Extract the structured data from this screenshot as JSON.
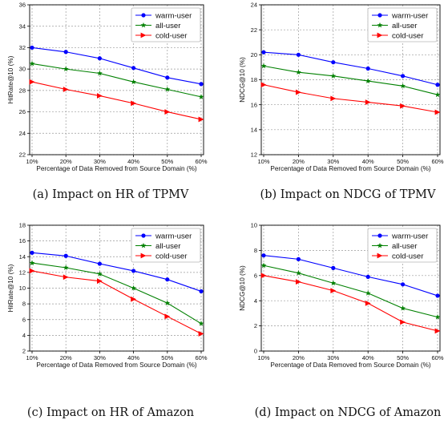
{
  "chart_data": [
    {
      "type": "line",
      "caption": "(a)  Impact on HR of TPMV",
      "xlabel": "Percentage of Data Removed from Source Domain (%)",
      "ylabel": "HitRate@10 (%)",
      "categories": [
        "10%",
        "20%",
        "30%",
        "40%",
        "50%",
        "60%"
      ],
      "ylim": [
        22,
        36
      ],
      "yticks": [
        22,
        24,
        26,
        28,
        30,
        32,
        34,
        36
      ],
      "grid": true,
      "legend": "top-right",
      "series": [
        {
          "name": "warm-user",
          "color": "#0000ff",
          "marker": "circle",
          "values": [
            32.0,
            31.6,
            31.0,
            30.1,
            29.2,
            28.6
          ]
        },
        {
          "name": "all-user",
          "color": "#008000",
          "marker": "star",
          "values": [
            30.5,
            30.0,
            29.6,
            28.8,
            28.1,
            27.4
          ]
        },
        {
          "name": "cold-user",
          "color": "#ff0000",
          "marker": "triangle-right",
          "values": [
            28.8,
            28.1,
            27.5,
            26.8,
            26.0,
            25.3
          ]
        }
      ]
    },
    {
      "type": "line",
      "caption": "(b)  Impact on NDCG of TPMV",
      "xlabel": "Percentage of Data Removed from Source Domain (%)",
      "ylabel": "NDCG@10 (%)",
      "categories": [
        "10%",
        "20%",
        "30%",
        "40%",
        "50%",
        "60%"
      ],
      "ylim": [
        12,
        24
      ],
      "yticks": [
        12,
        14,
        16,
        18,
        20,
        22,
        24
      ],
      "grid": true,
      "legend": "top-right",
      "series": [
        {
          "name": "warm-user",
          "color": "#0000ff",
          "marker": "circle",
          "values": [
            20.2,
            20.0,
            19.4,
            18.9,
            18.3,
            17.6
          ]
        },
        {
          "name": "all-user",
          "color": "#008000",
          "marker": "star",
          "values": [
            19.1,
            18.6,
            18.3,
            17.9,
            17.5,
            16.8
          ]
        },
        {
          "name": "cold-user",
          "color": "#ff0000",
          "marker": "triangle-right",
          "values": [
            17.6,
            17.0,
            16.5,
            16.2,
            15.9,
            15.4
          ]
        }
      ]
    },
    {
      "type": "line",
      "caption": "(c)  Impact on HR of Amazon",
      "xlabel": "Percentage of Data Removed from Source Domain (%)",
      "ylabel": "HitRate@10 (%)",
      "categories": [
        "10%",
        "20%",
        "30%",
        "40%",
        "50%",
        "60%"
      ],
      "ylim": [
        2,
        18
      ],
      "yticks": [
        2,
        4,
        6,
        8,
        10,
        12,
        14,
        16,
        18
      ],
      "grid": true,
      "legend": "top-right",
      "series": [
        {
          "name": "warm-user",
          "color": "#0000ff",
          "marker": "circle",
          "values": [
            14.5,
            14.1,
            13.1,
            12.2,
            11.1,
            9.6
          ]
        },
        {
          "name": "all-user",
          "color": "#008000",
          "marker": "star",
          "values": [
            13.2,
            12.6,
            11.8,
            10.0,
            8.1,
            5.5
          ]
        },
        {
          "name": "cold-user",
          "color": "#ff0000",
          "marker": "triangle-right",
          "values": [
            12.2,
            11.4,
            10.9,
            8.6,
            6.4,
            4.2
          ]
        }
      ]
    },
    {
      "type": "line",
      "caption": "(d)  Impact on NDCG of Amazon",
      "xlabel": "Percentage of Data Removed from Source Domain (%)",
      "ylabel": "NDCG@10 (%)",
      "categories": [
        "10%",
        "20%",
        "30%",
        "40%",
        "50%",
        "60%"
      ],
      "ylim": [
        0,
        10
      ],
      "yticks": [
        0,
        2,
        4,
        6,
        8,
        10
      ],
      "grid": true,
      "legend": "top-right",
      "series": [
        {
          "name": "warm-user",
          "color": "#0000ff",
          "marker": "circle",
          "values": [
            7.6,
            7.3,
            6.6,
            5.9,
            5.3,
            4.4
          ]
        },
        {
          "name": "all-user",
          "color": "#008000",
          "marker": "star",
          "values": [
            6.8,
            6.2,
            5.4,
            4.6,
            3.4,
            2.7
          ]
        },
        {
          "name": "cold-user",
          "color": "#ff0000",
          "marker": "triangle-right",
          "values": [
            6.0,
            5.5,
            4.8,
            3.8,
            2.3,
            1.6
          ]
        }
      ]
    }
  ]
}
